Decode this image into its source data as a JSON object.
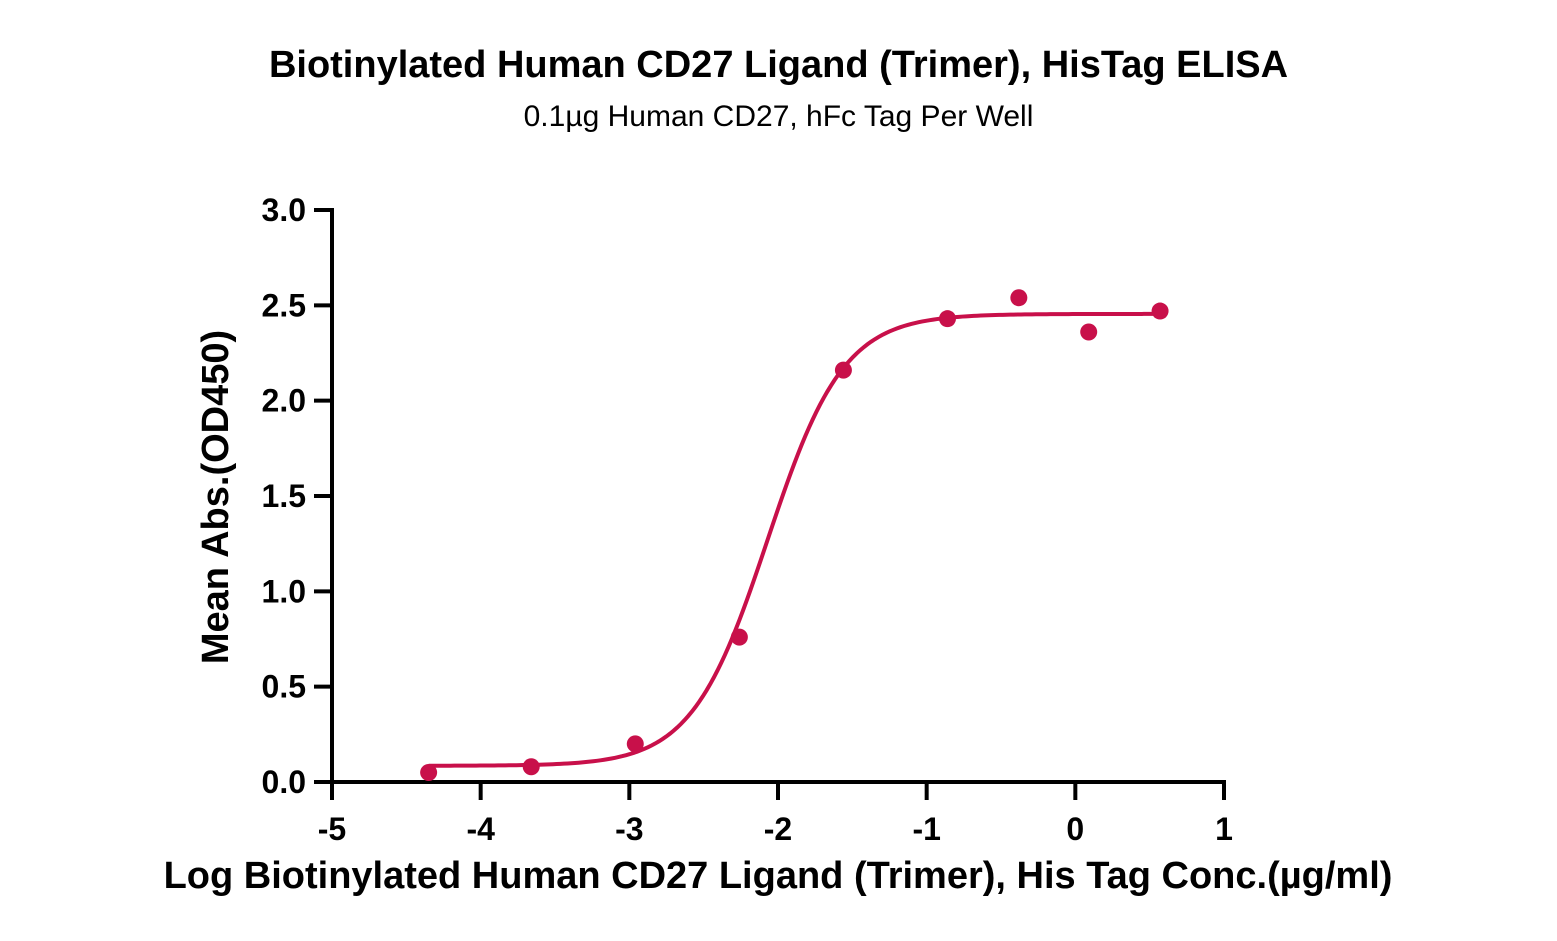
{
  "chart_data": {
    "type": "scatter",
    "title": "Biotinylated Human CD27 Ligand (Trimer), HisTag ELISA",
    "subtitle": "0.1µg Human CD27, hFc Tag Per Well",
    "xlabel": "Log Biotinylated Human CD27 Ligand (Trimer), His Tag Conc.(µg/ml)",
    "ylabel": "Mean Abs.(OD450)",
    "xlim": [
      -5,
      1
    ],
    "ylim": [
      0,
      3.0
    ],
    "x_ticks": [
      "-5",
      "-4",
      "-3",
      "-2",
      "-1",
      "0",
      "1"
    ],
    "y_ticks": [
      "0.0",
      "0.5",
      "1.0",
      "1.5",
      "2.0",
      "2.5",
      "3.0"
    ],
    "grid": false,
    "series": [
      {
        "points": [
          {
            "x": -4.35,
            "y": 0.05
          },
          {
            "x": -3.66,
            "y": 0.08
          },
          {
            "x": -2.96,
            "y": 0.2
          },
          {
            "x": -2.26,
            "y": 0.76
          },
          {
            "x": -1.56,
            "y": 2.16
          },
          {
            "x": -0.86,
            "y": 2.43
          },
          {
            "x": -0.38,
            "y": 2.54
          },
          {
            "x": 0.09,
            "y": 2.36
          },
          {
            "x": 0.57,
            "y": 2.47
          }
        ],
        "color": "#c8104a"
      }
    ],
    "fit_curve": {
      "model": "4PL",
      "bottom": 0.085,
      "top": 2.455,
      "log_ec50": -2.07,
      "hill_slope": 1.7,
      "x_range": [
        -4.35,
        0.57
      ],
      "color": "#c8104a"
    }
  }
}
